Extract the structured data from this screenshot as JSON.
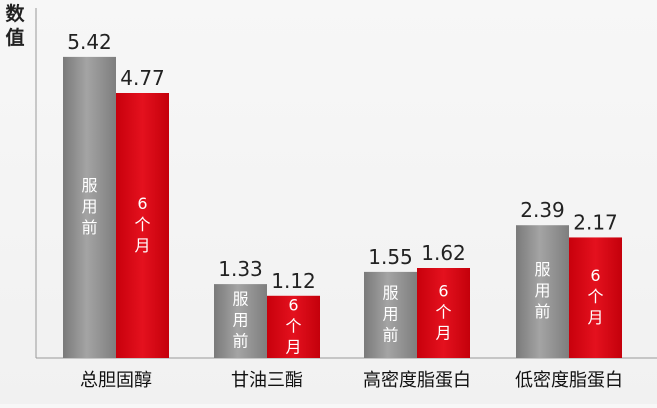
{
  "chart_data": {
    "type": "bar",
    "ylabel": "数值",
    "categories": [
      "总胆固醇",
      "甘油三酯",
      "高密度脂蛋白",
      "低密度脂蛋白"
    ],
    "series": [
      {
        "name": "服用前",
        "values": [
          5.42,
          1.33,
          1.55,
          2.39
        ],
        "color": "#8a8a8a",
        "bar_label": "服用前"
      },
      {
        "name": "6个月",
        "values": [
          4.77,
          1.12,
          1.62,
          2.17
        ],
        "color": "#d6000f",
        "bar_label": "6个月"
      }
    ],
    "ylim": [
      0,
      6.3
    ],
    "grid": false,
    "legend": "none"
  }
}
